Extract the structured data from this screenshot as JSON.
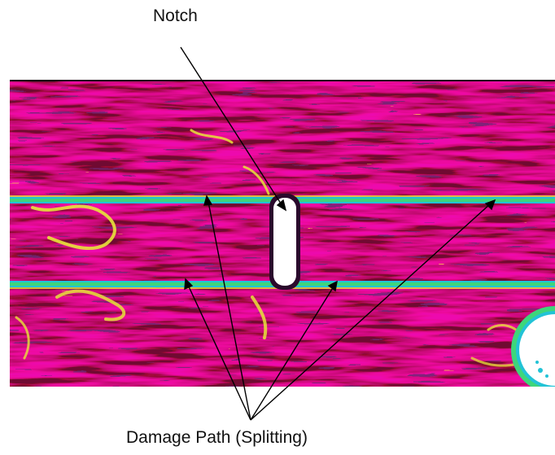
{
  "labels": {
    "notch": "Notch",
    "damage_path": "Damage Path (Splitting)"
  },
  "colors": {
    "background_red": "#e8102a",
    "magenta": "#c41ed8",
    "purple_dark": "#3a0a3e",
    "orange": "#f26a1d",
    "yellow": "#e8e43a",
    "split_green": "#3ed67a",
    "split_cyan": "#22c3d6",
    "notch_fill": "#ffffff",
    "arrow": "#000000"
  },
  "elements": {
    "notch_shape": "rounded-slot",
    "hole_shape": "circular-cutout"
  }
}
